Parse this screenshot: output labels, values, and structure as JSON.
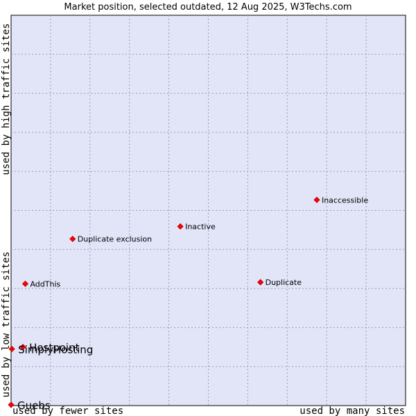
{
  "chart_data": {
    "type": "scatter",
    "title": "Market position, selected outdated, 12 Aug 2025, W3Techs.com",
    "xlabel_low": "used by fewer sites",
    "xlabel_high": "used by many sites",
    "ylabel_low": "used by low traffic sites",
    "ylabel_high": "used by high traffic sites",
    "grid": true,
    "xlim": [
      0,
      10
    ],
    "ylim": [
      0,
      10
    ],
    "points": [
      {
        "name": "Inaccessible",
        "x": 7.75,
        "y": 5.27,
        "label_size": "small"
      },
      {
        "name": "Inactive",
        "x": 4.29,
        "y": 4.59,
        "label_size": "small"
      },
      {
        "name": "Duplicate exclusion",
        "x": 1.56,
        "y": 4.27,
        "label_size": "small"
      },
      {
        "name": "AddThis",
        "x": 0.36,
        "y": 3.12,
        "label_size": "small"
      },
      {
        "name": "Duplicate",
        "x": 6.32,
        "y": 3.16,
        "label_size": "small"
      },
      {
        "name": "Hostpoint",
        "x": 0.3,
        "y": 1.5,
        "label_size": "large"
      },
      {
        "name": "SimplyHosting",
        "x": 0.02,
        "y": 1.45,
        "label_size": "large"
      },
      {
        "name": "Guebs",
        "x": 0.0,
        "y": 0.02,
        "label_size": "large"
      }
    ],
    "colors": {
      "plot_bg": "#e2e4f8",
      "grid": "#9b9bb8",
      "marker_fill": "#ff0000",
      "marker_stroke": "#b00000"
    }
  }
}
